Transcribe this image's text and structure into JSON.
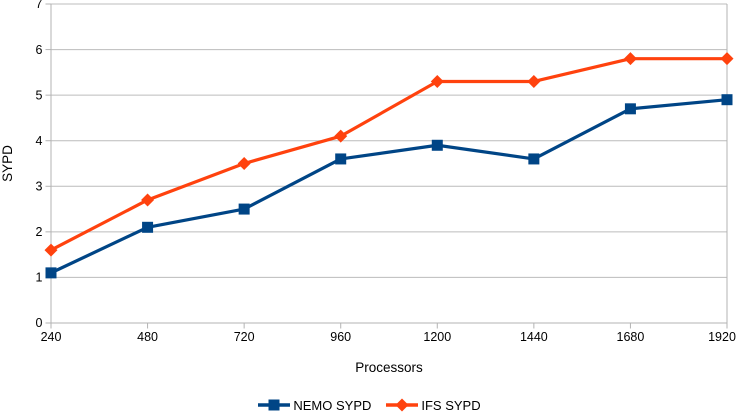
{
  "chart_data": {
    "type": "line",
    "title": "",
    "xlabel": "Processors",
    "ylabel": "SYPD",
    "x": [
      240,
      480,
      720,
      960,
      1200,
      1440,
      1680,
      1920
    ],
    "xtick_labels": [
      "240",
      "480",
      "720",
      "960",
      "1200",
      "1440",
      "1680",
      "1920"
    ],
    "ylim": [
      0,
      7
    ],
    "ytick_step": 1,
    "ytick_labels": [
      "0",
      "1",
      "2",
      "3",
      "4",
      "5",
      "6",
      "7"
    ],
    "grid": "horizontal-only",
    "legend_position": "bottom-center",
    "series": [
      {
        "name": "NEMO SYPD",
        "color": "#004586",
        "marker": "square",
        "values": [
          1.1,
          2.1,
          2.5,
          3.6,
          3.9,
          3.6,
          4.7,
          4.9
        ]
      },
      {
        "name": "IFS SYPD",
        "color": "#FF420E",
        "marker": "diamond",
        "values": [
          1.6,
          2.7,
          3.5,
          4.1,
          5.3,
          5.3,
          5.8,
          5.8
        ]
      }
    ],
    "colors": {
      "axis": "#b3b3b3",
      "gridline": "#bcbcbc",
      "tick_text": "#000000",
      "background": "#ffffff"
    }
  }
}
